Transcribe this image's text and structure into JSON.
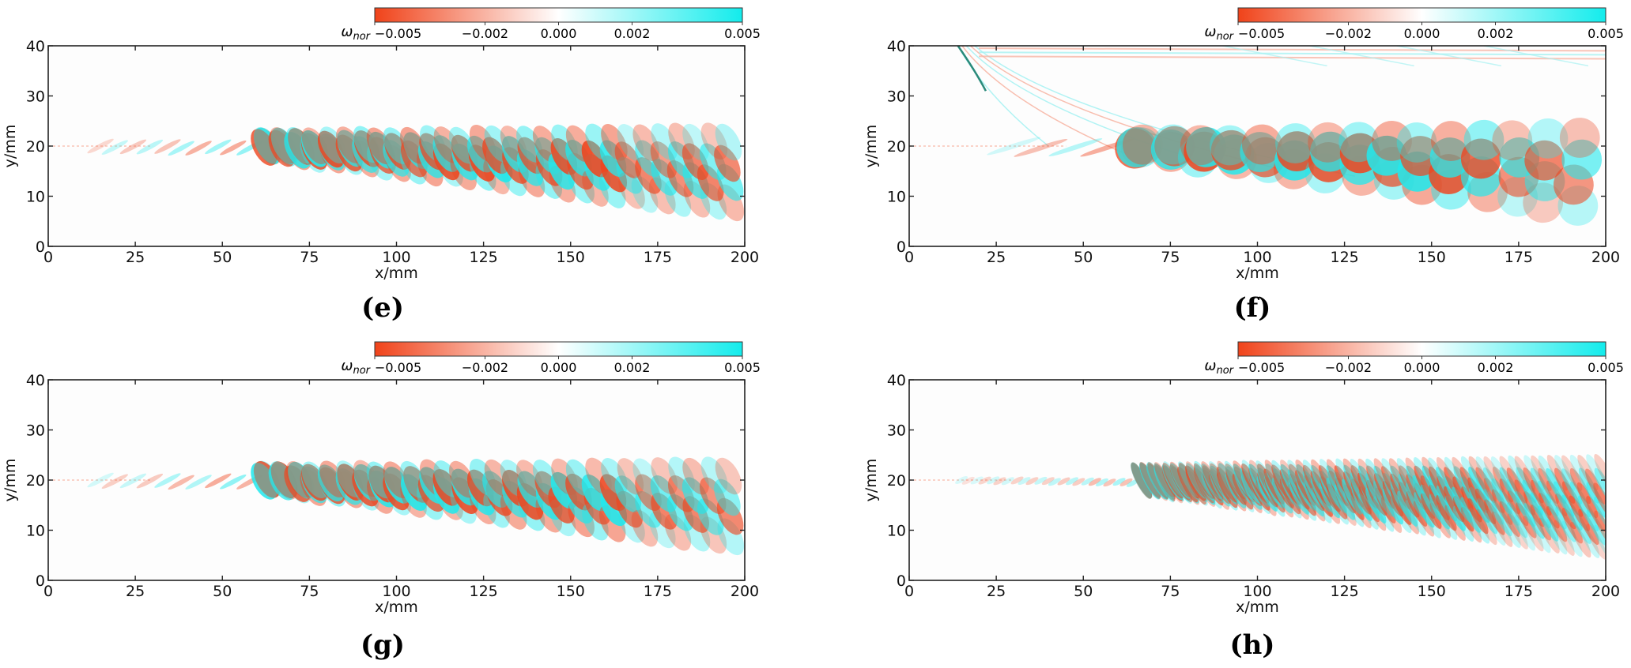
{
  "colorbar": {
    "label": "ω",
    "label_sub": "nor",
    "ticks": [
      "−0.005",
      "−0.002",
      "0.000",
      "0.002",
      "0.005"
    ],
    "tick_values": [
      -0.005,
      -0.002,
      0.0,
      0.002,
      0.005
    ],
    "vmin": -0.005,
    "vmax": 0.005,
    "color_negative": "#f0431a",
    "color_zero": "#ffffff",
    "color_positive": "#13ecec"
  },
  "colors": {
    "negative": "#ee4620",
    "positive": "#22e8ec",
    "faint_negative": "#f7b7a6",
    "faint_positive": "#a9f2f3"
  },
  "chart_data": [
    {
      "type": "heatmap",
      "panel": "e",
      "caption": "(e)",
      "xlabel": "x/mm",
      "ylabel": "y/mm",
      "xlim": [
        0,
        200
      ],
      "ylim": [
        0,
        40
      ],
      "xticks": [
        "0",
        "25",
        "50",
        "75",
        "100",
        "125",
        "150",
        "175",
        "200"
      ],
      "yticks": [
        "0",
        "10",
        "20",
        "30",
        "40"
      ],
      "pattern": {
        "centerline_y": 20,
        "onset_x": 15,
        "spread_start_x": 60,
        "wavelength": 9.5,
        "intensity": 1.0,
        "bottom_y_end": 6,
        "top_y_end": 23,
        "shock": false,
        "fine": false,
        "phase": 0
      }
    },
    {
      "type": "heatmap",
      "panel": "f",
      "caption": "(f)",
      "xlabel": "x/mm",
      "ylabel": "y/mm",
      "xlim": [
        0,
        200
      ],
      "ylim": [
        0,
        40
      ],
      "xticks": [
        "0",
        "25",
        "50",
        "75",
        "100",
        "125",
        "150",
        "175",
        "200"
      ],
      "yticks": [
        "0",
        "10",
        "20",
        "30",
        "40"
      ],
      "pattern": {
        "centerline_y": 20,
        "onset_x": 30,
        "spread_start_x": 62,
        "wavelength": 18,
        "intensity": 1.0,
        "bottom_y_end": 5,
        "top_y_end": 24,
        "shock": true,
        "fine": false,
        "phase": 1.2
      }
    },
    {
      "type": "heatmap",
      "panel": "g",
      "caption": "(g)",
      "xlabel": "x/mm",
      "ylabel": "y/mm",
      "xlim": [
        0,
        200
      ],
      "ylim": [
        0,
        40
      ],
      "xticks": [
        "0",
        "25",
        "50",
        "75",
        "100",
        "125",
        "150",
        "175",
        "200"
      ],
      "yticks": [
        "0",
        "10",
        "20",
        "30",
        "40"
      ],
      "pattern": {
        "centerline_y": 20,
        "onset_x": 15,
        "spread_start_x": 62,
        "wavelength": 9.5,
        "intensity": 1.0,
        "bottom_y_end": 6,
        "top_y_end": 23,
        "shock": false,
        "fine": false,
        "phase": 3.1
      }
    },
    {
      "type": "heatmap",
      "panel": "h",
      "caption": "(h)",
      "xlabel": "x/mm",
      "ylabel": "y/mm",
      "xlim": [
        0,
        200
      ],
      "ylim": [
        0,
        40
      ],
      "xticks": [
        "0",
        "25",
        "50",
        "75",
        "100",
        "125",
        "150",
        "175",
        "200"
      ],
      "yticks": [
        "0",
        "10",
        "20",
        "30",
        "40"
      ],
      "pattern": {
        "centerline_y": 20,
        "onset_x": 15,
        "spread_start_x": 65,
        "wavelength": 4.5,
        "intensity": 0.75,
        "bottom_y_end": 6,
        "top_y_end": 23,
        "shock": false,
        "fine": true,
        "phase": 0.5
      }
    }
  ]
}
